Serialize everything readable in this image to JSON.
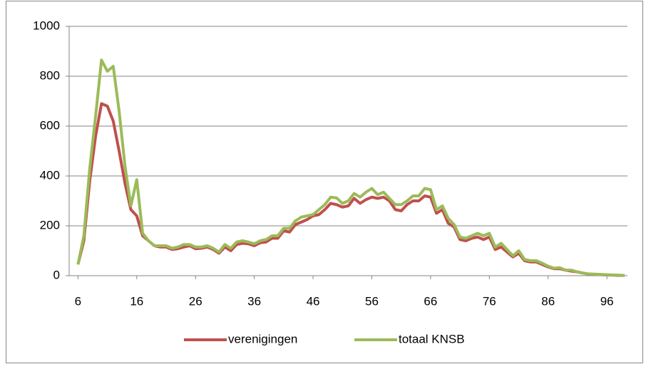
{
  "chart_data": {
    "type": "line",
    "x": [
      6,
      7,
      8,
      9,
      10,
      11,
      12,
      13,
      14,
      15,
      16,
      17,
      18,
      19,
      20,
      21,
      22,
      23,
      24,
      25,
      26,
      27,
      28,
      29,
      30,
      31,
      32,
      33,
      34,
      35,
      36,
      37,
      38,
      39,
      40,
      41,
      42,
      43,
      44,
      45,
      46,
      47,
      48,
      49,
      50,
      51,
      52,
      53,
      54,
      55,
      56,
      57,
      58,
      59,
      60,
      61,
      62,
      63,
      64,
      65,
      66,
      67,
      68,
      69,
      70,
      71,
      72,
      73,
      74,
      75,
      76,
      77,
      78,
      79,
      80,
      81,
      82,
      83,
      84,
      85,
      86,
      87,
      88,
      89,
      90,
      91,
      92,
      93,
      94,
      95,
      96,
      97,
      98,
      99
    ],
    "series": [
      {
        "name": "verenigingen",
        "color": "#c0504d",
        "values": [
          45,
          140,
          380,
          560,
          690,
          680,
          620,
          500,
          370,
          265,
          240,
          160,
          140,
          120,
          115,
          115,
          105,
          108,
          115,
          120,
          108,
          110,
          115,
          105,
          90,
          115,
          100,
          125,
          130,
          128,
          120,
          132,
          135,
          150,
          150,
          180,
          175,
          205,
          215,
          225,
          240,
          245,
          265,
          290,
          285,
          275,
          280,
          310,
          290,
          305,
          315,
          310,
          315,
          300,
          265,
          260,
          285,
          300,
          300,
          320,
          315,
          250,
          265,
          210,
          195,
          145,
          140,
          150,
          155,
          145,
          155,
          105,
          115,
          95,
          75,
          90,
          60,
          55,
          55,
          45,
          35,
          28,
          28,
          22,
          18,
          15,
          10,
          6,
          5,
          4,
          3,
          2,
          1,
          1
        ]
      },
      {
        "name": "totaal KNSB",
        "color": "#9bbb59",
        "values": [
          45,
          160,
          430,
          640,
          865,
          820,
          840,
          660,
          440,
          280,
          385,
          170,
          140,
          120,
          120,
          120,
          110,
          115,
          125,
          125,
          115,
          115,
          120,
          110,
          95,
          125,
          110,
          135,
          140,
          135,
          128,
          140,
          145,
          160,
          160,
          190,
          190,
          220,
          235,
          240,
          245,
          265,
          285,
          315,
          312,
          290,
          300,
          330,
          315,
          335,
          350,
          325,
          335,
          310,
          285,
          285,
          300,
          320,
          320,
          350,
          345,
          265,
          280,
          230,
          205,
          155,
          150,
          160,
          170,
          160,
          170,
          115,
          130,
          105,
          80,
          100,
          65,
          60,
          60,
          50,
          38,
          30,
          32,
          22,
          22,
          15,
          10,
          7,
          6,
          5,
          4,
          3,
          2,
          1
        ]
      }
    ],
    "xlim": [
      4.5,
      99.5
    ],
    "xticks": [
      6,
      16,
      26,
      36,
      46,
      56,
      66,
      76,
      86,
      96
    ],
    "ylim": [
      0,
      1000
    ],
    "yticks": [
      0,
      200,
      400,
      600,
      800,
      1000
    ],
    "grid": true,
    "legend": "bottom"
  }
}
